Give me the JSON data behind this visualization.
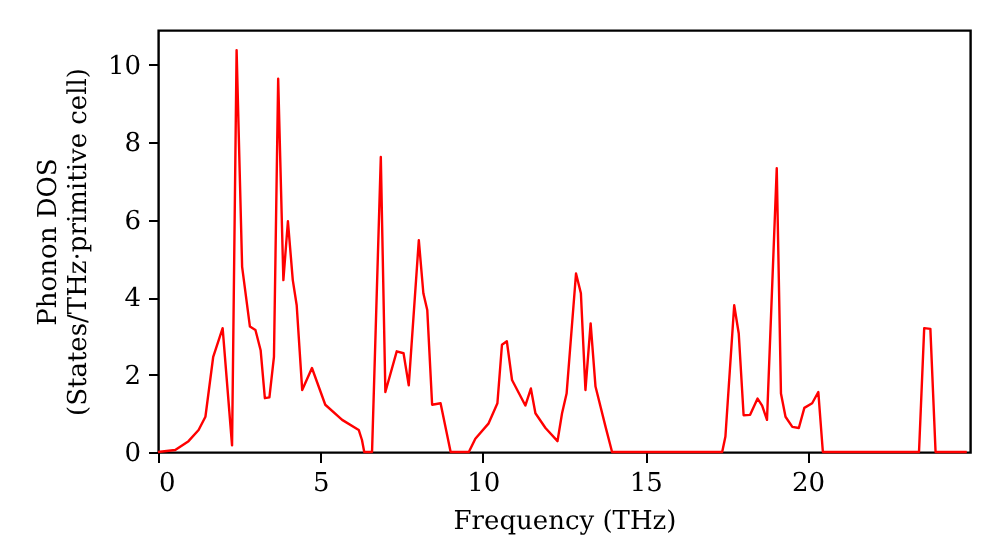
{
  "chart_data": {
    "type": "line",
    "xlabel": "Frequency (THz)",
    "ylabel": "Phonon DOS\n(States/THz·primitive cell)",
    "xlim": [
      0,
      25
    ],
    "ylim": [
      0,
      10.9
    ],
    "xticks": [
      0,
      5,
      10,
      15,
      20
    ],
    "yticks": [
      0,
      2,
      4,
      6,
      8,
      10
    ],
    "grid": false,
    "line_style": "solid",
    "marker": "none",
    "x": [
      0,
      0.53,
      0.94,
      1.25,
      1.46,
      1.7,
      1.99,
      2.28,
      2.42,
      2.59,
      2.83,
      3.0,
      3.16,
      3.29,
      3.43,
      3.57,
      3.7,
      3.86,
      4.0,
      4.15,
      4.27,
      4.44,
      4.74,
      5.15,
      5.67,
      6.18,
      6.28,
      6.35,
      6.59,
      6.86,
      7.0,
      7.35,
      7.56,
      7.72,
      8.03,
      8.17,
      8.29,
      8.44,
      8.7,
      9.01,
      9.57,
      9.77,
      10.18,
      10.45,
      10.59,
      10.74,
      10.9,
      11.31,
      11.48,
      11.62,
      11.93,
      12.3,
      12.44,
      12.58,
      12.87,
      13.02,
      13.16,
      13.32,
      13.47,
      13.78,
      13.98,
      17.37,
      17.47,
      17.74,
      17.88,
      18.03,
      18.23,
      18.46,
      18.6,
      18.75,
      19.05,
      19.18,
      19.32,
      19.53,
      19.73,
      19.9,
      20.14,
      20.33,
      20.47,
      23.43,
      23.59,
      23.78,
      23.94,
      24.9
    ],
    "series": [
      {
        "color": "#ff0000",
        "values": [
          0,
          0.05,
          0.28,
          0.57,
          0.91,
          2.46,
          3.2,
          0.17,
          10.38,
          4.78,
          3.24,
          3.15,
          2.63,
          1.39,
          1.41,
          2.46,
          9.64,
          4.44,
          5.96,
          4.44,
          3.79,
          1.6,
          2.17,
          1.22,
          0.83,
          0.57,
          0.31,
          0,
          0,
          7.62,
          1.55,
          2.6,
          2.55,
          1.72,
          5.47,
          4.1,
          3.67,
          1.22,
          1.26,
          0,
          0,
          0.34,
          0.74,
          1.26,
          2.77,
          2.86,
          1.86,
          1.2,
          1.64,
          1.0,
          0.62,
          0.28,
          1.0,
          1.51,
          4.61,
          4.1,
          1.6,
          3.32,
          1.69,
          0.65,
          0,
          0,
          0.4,
          3.79,
          3.06,
          0.95,
          0.96,
          1.38,
          1.2,
          0.83,
          7.33,
          1.51,
          0.91,
          0.65,
          0.62,
          1.14,
          1.26,
          1.55,
          0,
          0,
          3.2,
          3.18,
          0,
          0
        ]
      }
    ]
  }
}
